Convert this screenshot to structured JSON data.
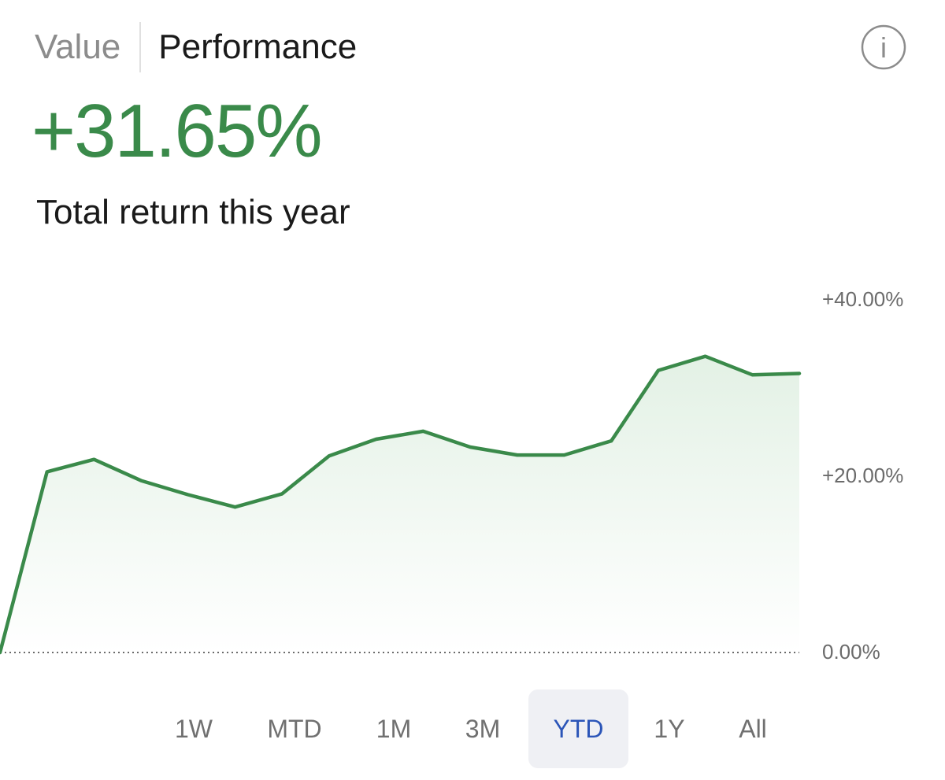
{
  "tabs": [
    {
      "label": "Value",
      "active": false
    },
    {
      "label": "Performance",
      "active": true
    }
  ],
  "info_icon": "info-icon",
  "info_glyph": "i",
  "headline": {
    "value": "+31.65%",
    "label": "Total return this year",
    "color": "#3a8a4a"
  },
  "ranges": [
    {
      "label": "1W"
    },
    {
      "label": "MTD"
    },
    {
      "label": "1M"
    },
    {
      "label": "3M"
    },
    {
      "label": "YTD",
      "selected": true
    },
    {
      "label": "1Y"
    },
    {
      "label": "All"
    }
  ],
  "chart_data": {
    "type": "area",
    "y_ticks": [
      "+40.00%",
      "+20.00%",
      "0.00%"
    ],
    "ylim": [
      0,
      40
    ],
    "baseline": 0,
    "baseline_style": "dotted",
    "grid": false,
    "line_color": "#3a8a4a",
    "fill_color": "#e3f1e5",
    "series": [
      {
        "values": [
          0,
          20.5,
          21.9,
          19.5,
          17.9,
          16.5,
          18.0,
          22.3,
          24.2,
          25.1,
          23.3,
          22.4,
          22.4,
          24.0,
          32.0,
          33.6,
          31.5,
          31.65
        ]
      }
    ]
  }
}
